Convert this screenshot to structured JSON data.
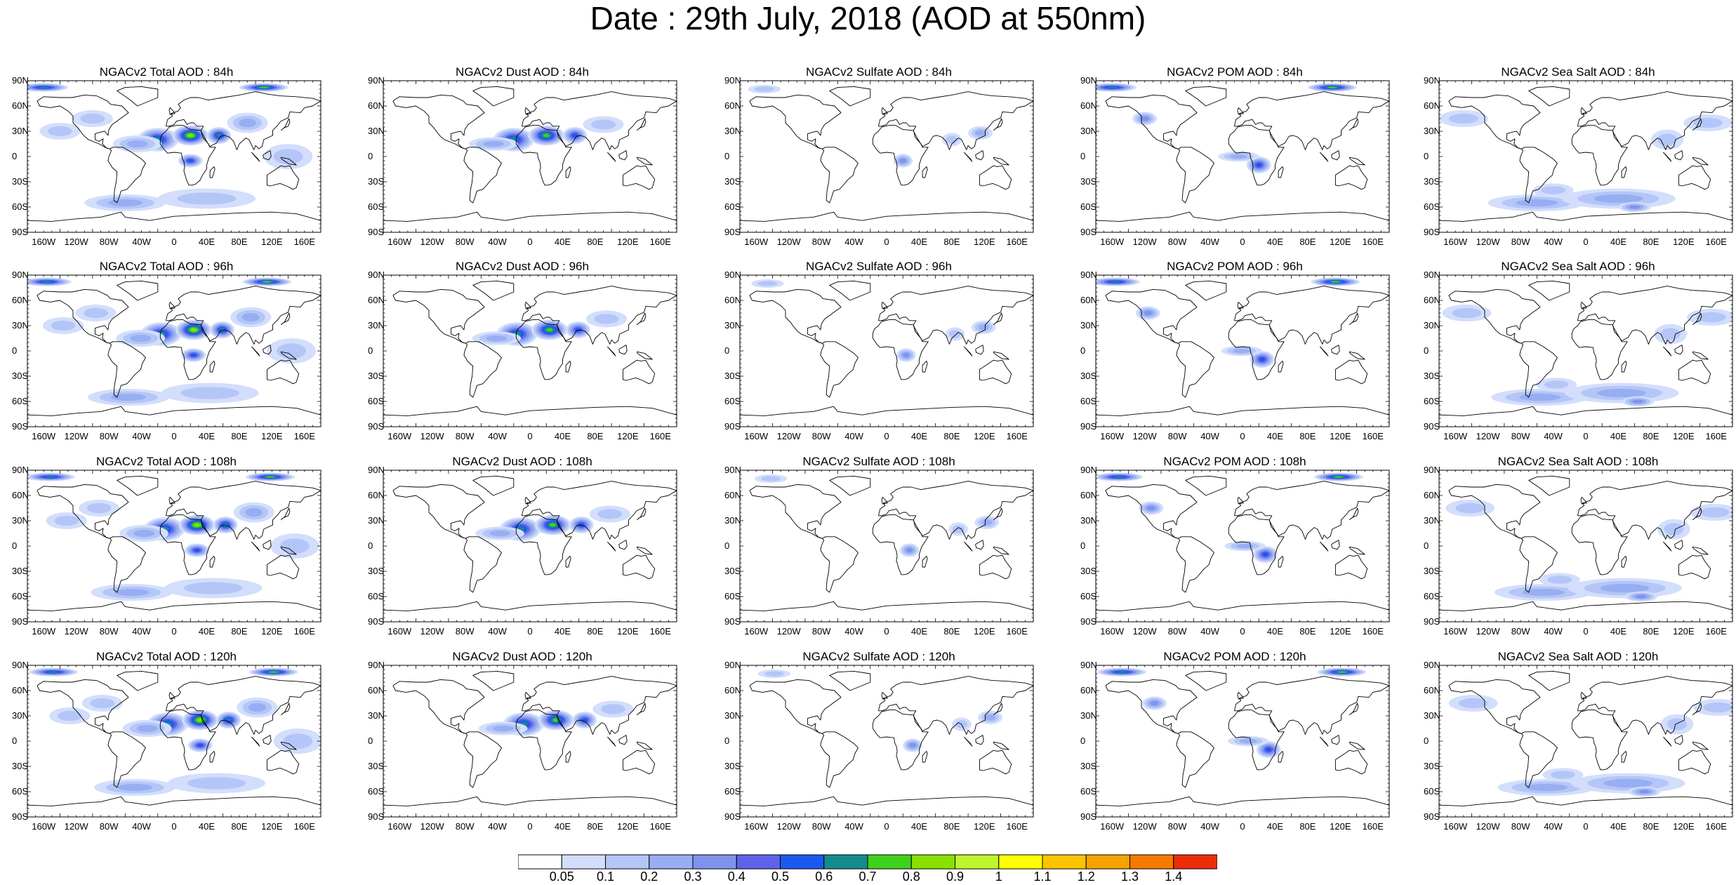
{
  "figure": {
    "title": "Date : 29th July, 2018 (AOD at 550nm)"
  },
  "axes": {
    "lat_labels": [
      "90N",
      "60N",
      "30N",
      "0",
      "30S",
      "60S",
      "90S"
    ],
    "lon_labels": [
      "160W",
      "120W",
      "80W",
      "40W",
      "0",
      "40E",
      "80E",
      "120E",
      "160E"
    ]
  },
  "panels": [
    {
      "title": "NGACv2 Total AOD : 84h",
      "species": "total",
      "forecast_hour": 84
    },
    {
      "title": "NGACv2 Dust AOD : 84h",
      "species": "dust",
      "forecast_hour": 84
    },
    {
      "title": "NGACv2 Sulfate AOD : 84h",
      "species": "sulfate",
      "forecast_hour": 84
    },
    {
      "title": "NGACv2 POM AOD : 84h",
      "species": "pom",
      "forecast_hour": 84
    },
    {
      "title": "NGACv2 Sea Salt AOD : 84h",
      "species": "seasalt",
      "forecast_hour": 84
    },
    {
      "title": "NGACv2 Total AOD : 96h",
      "species": "total",
      "forecast_hour": 96
    },
    {
      "title": "NGACv2 Dust AOD : 96h",
      "species": "dust",
      "forecast_hour": 96
    },
    {
      "title": "NGACv2 Sulfate AOD : 96h",
      "species": "sulfate",
      "forecast_hour": 96
    },
    {
      "title": "NGACv2 POM AOD : 96h",
      "species": "pom",
      "forecast_hour": 96
    },
    {
      "title": "NGACv2 Sea Salt AOD : 96h",
      "species": "seasalt",
      "forecast_hour": 96
    },
    {
      "title": "NGACv2 Total AOD : 108h",
      "species": "total",
      "forecast_hour": 108
    },
    {
      "title": "NGACv2 Dust AOD : 108h",
      "species": "dust",
      "forecast_hour": 108
    },
    {
      "title": "NGACv2 Sulfate AOD : 108h",
      "species": "sulfate",
      "forecast_hour": 108
    },
    {
      "title": "NGACv2 POM AOD : 108h",
      "species": "pom",
      "forecast_hour": 108
    },
    {
      "title": "NGACv2 Sea Salt AOD : 108h",
      "species": "seasalt",
      "forecast_hour": 108
    },
    {
      "title": "NGACv2 Total AOD : 120h",
      "species": "total",
      "forecast_hour": 120
    },
    {
      "title": "NGACv2 Dust AOD : 120h",
      "species": "dust",
      "forecast_hour": 120
    },
    {
      "title": "NGACv2 Sulfate AOD : 120h",
      "species": "sulfate",
      "forecast_hour": 120
    },
    {
      "title": "NGACv2 POM AOD : 120h",
      "species": "pom",
      "forecast_hour": 120
    },
    {
      "title": "NGACv2 Sea Salt  AOD : 120h",
      "species": "seasalt",
      "forecast_hour": 120
    }
  ],
  "colorbar": {
    "labels": [
      "0.05",
      "0.1",
      "0.2",
      "0.3",
      "0.4",
      "0.5",
      "0.6",
      "0.7",
      "0.8",
      "0.9",
      "1",
      "1.1",
      "1.2",
      "1.3",
      "1.4"
    ],
    "colors": [
      "#ffffff",
      "#d3defc",
      "#b4c6f7",
      "#98aef2",
      "#7f93ee",
      "#5e63ea",
      "#1b59f0",
      "#148c8c",
      "#3fd21c",
      "#8ae000",
      "#bff52e",
      "#ffff00",
      "#fcc400",
      "#f5a300",
      "#f57a00",
      "#eb2d0a"
    ]
  }
}
